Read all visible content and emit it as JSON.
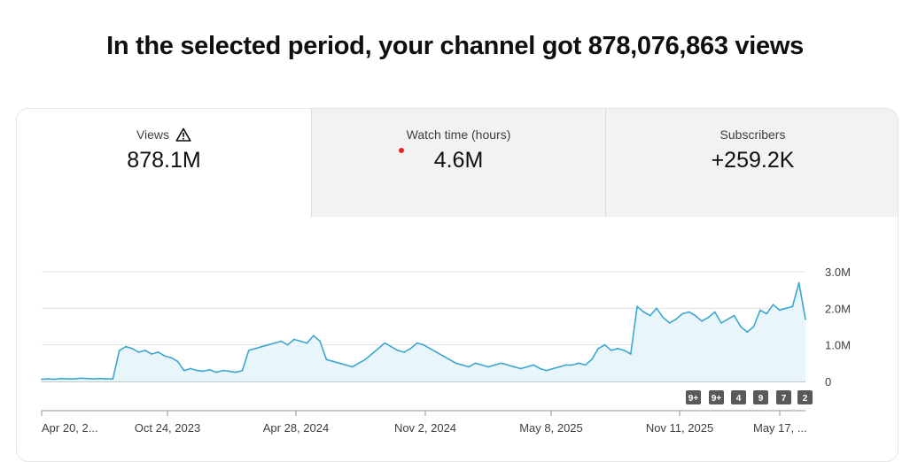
{
  "headline": "In the selected period, your channel got 878,076,863 views",
  "tabs": [
    {
      "label": "Views",
      "value": "878.1M",
      "icon": "warning-triangle-icon",
      "selected": true
    },
    {
      "label": "Watch time (hours)",
      "value": "4.6M",
      "indicator": "red-dot",
      "selected": false
    },
    {
      "label": "Subscribers",
      "value": "+259.2K",
      "selected": false
    }
  ],
  "badges": [
    "9+",
    "9+",
    "4",
    "9",
    "7",
    "2"
  ],
  "colors": {
    "line": "#3ea6cf",
    "fill": "#e8f5fb",
    "badge": "#595959",
    "dot": "#e52620"
  },
  "chart_data": {
    "type": "area",
    "x_ticks": [
      "Apr 20, 2...",
      "Oct 24, 2023",
      "Apr 28, 2024",
      "Nov 2, 2024",
      "May 8, 2025",
      "Nov 11, 2025",
      "May 17, ..."
    ],
    "y_ticks": [
      "0",
      "1.0M",
      "2.0M",
      "3.0M"
    ],
    "ylim": [
      0,
      3000000
    ],
    "grid": true,
    "series": [
      {
        "values": [
          60000,
          70000,
          60000,
          80000,
          70000,
          70000,
          90000,
          80000,
          70000,
          80000,
          70000,
          70000,
          850000,
          950000,
          900000,
          800000,
          850000,
          750000,
          800000,
          700000,
          650000,
          550000,
          300000,
          350000,
          300000,
          280000,
          320000,
          250000,
          300000,
          280000,
          250000,
          300000,
          850000,
          900000,
          950000,
          1000000,
          1050000,
          1100000,
          1000000,
          1150000,
          1100000,
          1050000,
          1250000,
          1100000,
          600000,
          550000,
          500000,
          450000,
          400000,
          500000,
          600000,
          750000,
          900000,
          1050000,
          950000,
          850000,
          800000,
          900000,
          1050000,
          1000000,
          900000,
          800000,
          700000,
          600000,
          500000,
          450000,
          400000,
          500000,
          450000,
          400000,
          450000,
          500000,
          450000,
          400000,
          350000,
          400000,
          450000,
          350000,
          300000,
          350000,
          400000,
          450000,
          450000,
          500000,
          450000,
          600000,
          900000,
          1000000,
          850000,
          900000,
          850000,
          750000,
          2050000,
          1900000,
          1800000,
          2000000,
          1750000,
          1600000,
          1700000,
          1850000,
          1900000,
          1800000,
          1650000,
          1750000,
          1900000,
          1600000,
          1700000,
          1800000,
          1500000,
          1350000,
          1500000,
          1950000,
          1850000,
          2100000,
          1950000,
          2000000,
          2050000,
          2700000,
          1700000
        ]
      }
    ]
  }
}
